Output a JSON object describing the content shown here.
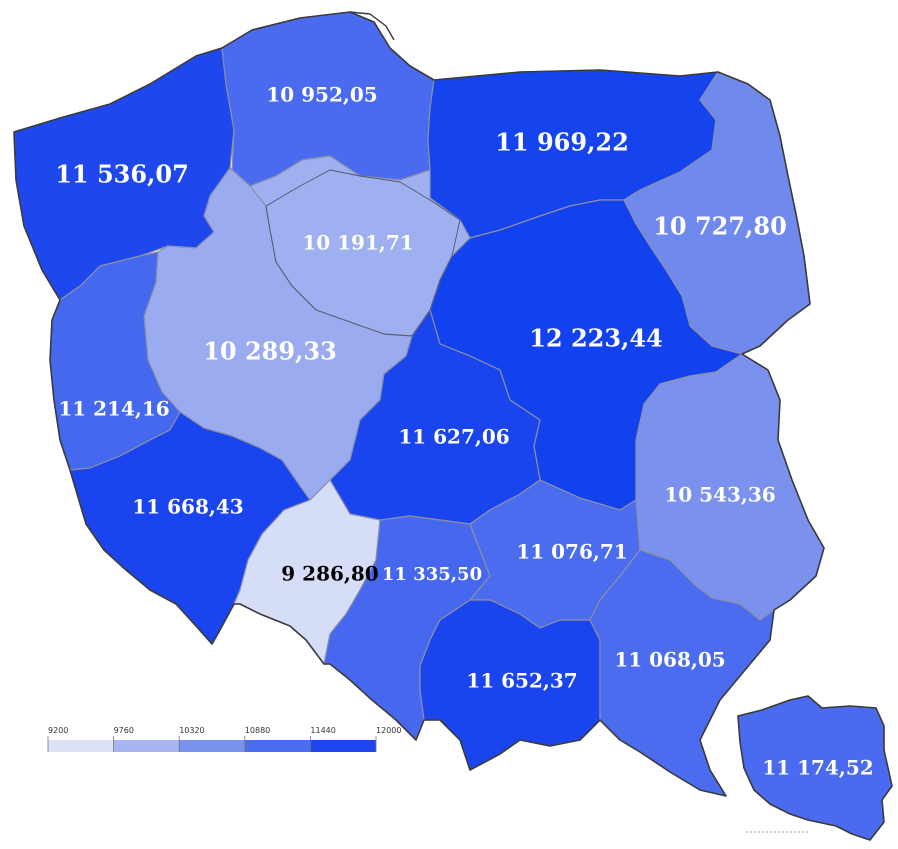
{
  "legend": {
    "ticks": [
      "9200",
      "9760",
      "10320",
      "10880",
      "11440",
      "12000"
    ],
    "bins": [
      {
        "color": "#dbe1f7"
      },
      {
        "color": "#a7b6f1"
      },
      {
        "color": "#7892ee"
      },
      {
        "color": "#4a6cef"
      },
      {
        "color": "#1d46ee"
      }
    ]
  },
  "regions": [
    {
      "id": "zachodniopomorskie",
      "label": "11 536,07",
      "value": 11536.07,
      "color": "#1f47ee"
    },
    {
      "id": "pomorskie",
      "label": "10 952,05",
      "value": 10952.05,
      "color": "#4a6bef"
    },
    {
      "id": "warminsko-mazurskie",
      "label": "11 969,22",
      "value": 11969.22,
      "color": "#1543ee"
    },
    {
      "id": "podlaskie",
      "label": "10 727,80",
      "value": 10727.8,
      "color": "#6f89ec"
    },
    {
      "id": "kujawsko-pomorskie",
      "label": "10 191,71",
      "value": 10191.71,
      "color": "#9eb0f0"
    },
    {
      "id": "wielkopolskie",
      "label": "10 289,33",
      "value": 10289.33,
      "color": "#9aabf0"
    },
    {
      "id": "mazowieckie",
      "label": "12 223,44",
      "value": 12223.44,
      "color": "#1242ee"
    },
    {
      "id": "lubuskie",
      "label": "11 214,16",
      "value": 11214.16,
      "color": "#4468ee"
    },
    {
      "id": "lodzkie",
      "label": "11 627,06",
      "value": 11627.06,
      "color": "#1a45ee"
    },
    {
      "id": "lubelskie",
      "label": "10 543,36",
      "value": 10543.36,
      "color": "#7a92ed"
    },
    {
      "id": "dolnoslaskie",
      "label": "11 668,43",
      "value": 11668.43,
      "color": "#1a45ee"
    },
    {
      "id": "opolskie",
      "label": "9 286,80",
      "value": 9286.8,
      "color": "#d6ddf7"
    },
    {
      "id": "slaskie",
      "label": "11 335,50",
      "value": 11335.5,
      "color": "#4668ee"
    },
    {
      "id": "swietokrzyskie",
      "label": "11 076,71",
      "value": 11076.71,
      "color": "#4c6cef"
    },
    {
      "id": "malopolskie",
      "label": "11 652,37",
      "value": 11652.37,
      "color": "#1a45ee"
    },
    {
      "id": "podkarpackie",
      "label": "11 068,05",
      "value": 11068.05,
      "color": "#4b6cef"
    },
    {
      "id": "poland",
      "label": "11 174,52",
      "value": 11174.52,
      "color": "#4a6bef"
    }
  ]
}
